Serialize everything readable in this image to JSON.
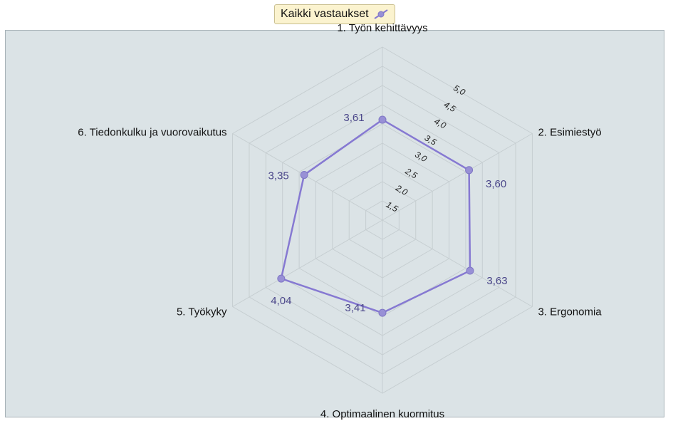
{
  "colors": {
    "series": "#8679d2",
    "marker": "#9890d6",
    "grid": "#c6ced1",
    "plot_bg": "#dbe3e6"
  },
  "chart_data": {
    "type": "radar",
    "categories": [
      "1. Työn kehittävyys",
      "2. Esimiestyö",
      "3. Ergonomia",
      "4. Optimaalinen kuormitus",
      "5. Työkyky",
      "6. Tiedonkulku ja vuorovaikutus"
    ],
    "series": [
      {
        "name": "Kaikki vastaukset",
        "values": [
          3.61,
          3.6,
          3.63,
          3.41,
          4.04,
          3.35
        ],
        "value_labels": [
          "3,61",
          "3,60",
          "3,63",
          "3,41",
          "4,04",
          "3,35"
        ]
      }
    ],
    "r_min": 1.0,
    "r_max": 5.5,
    "ticks": [
      1.5,
      2.0,
      2.5,
      3.0,
      3.5,
      4.0,
      4.5,
      5.0
    ],
    "tick_labels": [
      "1,5",
      "2,0",
      "2,5",
      "3,0",
      "3,5",
      "4,0",
      "4,5",
      "5,0"
    ],
    "grid": true,
    "legend_position": "top-center"
  }
}
